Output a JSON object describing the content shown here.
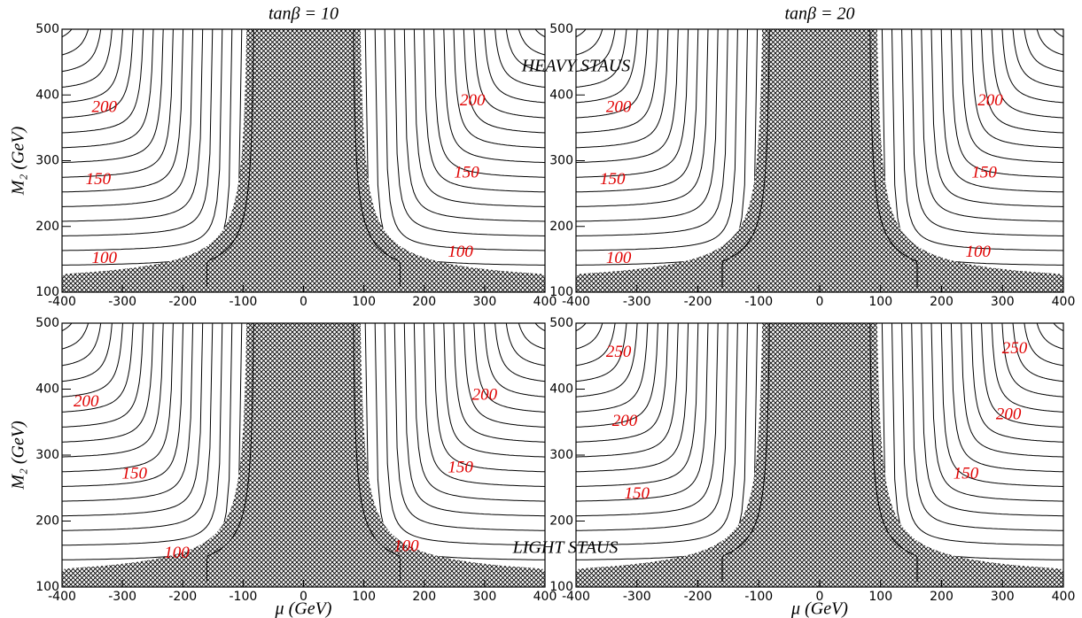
{
  "annotations": [
    "HEAVY STAUS",
    "LIGHT STAUS"
  ],
  "chart_data": [
    {
      "type": "contour",
      "title": "tanβ = 10",
      "ylabel": "M₂ (GeV)",
      "xlim": [
        -400,
        400
      ],
      "ylim": [
        100,
        500
      ],
      "xticks": [
        -400,
        -300,
        -200,
        -100,
        0,
        100,
        200,
        300,
        400
      ],
      "yticks": [
        100,
        200,
        300,
        400,
        500
      ],
      "contour_labels": [
        200,
        150,
        100,
        200,
        150,
        100
      ]
    },
    {
      "type": "contour",
      "title": "tanβ = 20",
      "xlim": [
        -400,
        400
      ],
      "ylim": [
        100,
        500
      ],
      "xticks": [
        -400,
        -300,
        -200,
        -100,
        0,
        100,
        200,
        300,
        400
      ],
      "yticks": [
        100,
        200,
        300,
        400,
        500
      ],
      "contour_labels": [
        200,
        150,
        100,
        200,
        150,
        100
      ]
    },
    {
      "type": "contour",
      "xlabel": "μ (GeV)",
      "ylabel": "M₂ (GeV)",
      "xlim": [
        -400,
        400
      ],
      "ylim": [
        100,
        500
      ],
      "xticks": [
        -400,
        -300,
        -200,
        -100,
        0,
        100,
        200,
        300,
        400
      ],
      "yticks": [
        100,
        200,
        300,
        400,
        500
      ],
      "contour_labels": [
        200,
        150,
        100,
        200,
        150,
        100
      ]
    },
    {
      "type": "contour",
      "xlabel": "μ (GeV)",
      "xlim": [
        -400,
        400
      ],
      "ylim": [
        100,
        500
      ],
      "xticks": [
        -400,
        -300,
        -200,
        -100,
        0,
        100,
        200,
        300,
        400
      ],
      "yticks": [
        100,
        200,
        300,
        400,
        500
      ],
      "contour_labels": [
        250,
        200,
        150,
        250,
        200,
        150
      ]
    }
  ]
}
